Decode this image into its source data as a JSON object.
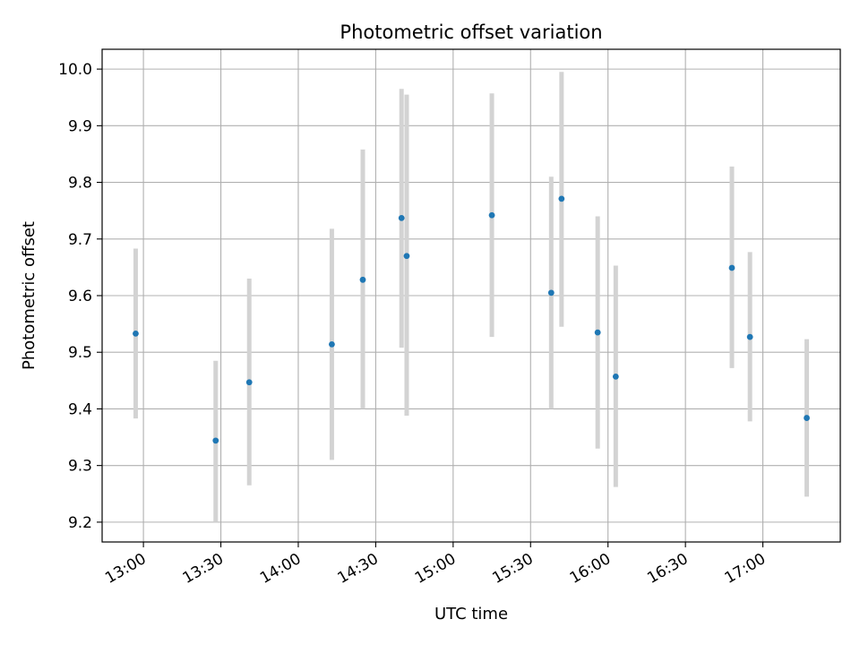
{
  "chart_data": {
    "type": "scatter",
    "title": "Photometric offset variation",
    "xlabel": "UTC time",
    "ylabel": "Photometric offset",
    "xlim": [
      "12:44",
      "17:30"
    ],
    "ylim": [
      9.165,
      10.035
    ],
    "x_ticks": [
      "13:00",
      "13:30",
      "14:00",
      "14:30",
      "15:00",
      "15:30",
      "16:00",
      "16:30",
      "17:00"
    ],
    "y_ticks": [
      "9.2",
      "9.3",
      "9.4",
      "9.5",
      "9.6",
      "9.7",
      "9.8",
      "9.9",
      "10.0"
    ],
    "grid": true,
    "legend": "none",
    "colors": {
      "point": "#1f77b4",
      "errorbar": "#d3d3d3",
      "grid": "#b0b0b0"
    },
    "series": [
      {
        "points": [
          {
            "x": "12:57",
            "y": 9.533,
            "ylow": 9.383,
            "yhigh": 9.683
          },
          {
            "x": "13:28",
            "y": 9.344,
            "ylow": 9.2,
            "yhigh": 9.485
          },
          {
            "x": "13:41",
            "y": 9.447,
            "ylow": 9.265,
            "yhigh": 9.63
          },
          {
            "x": "14:13",
            "y": 9.514,
            "ylow": 9.31,
            "yhigh": 9.718
          },
          {
            "x": "14:25",
            "y": 9.628,
            "ylow": 9.4,
            "yhigh": 9.858
          },
          {
            "x": "14:40",
            "y": 9.737,
            "ylow": 9.508,
            "yhigh": 9.965
          },
          {
            "x": "14:42",
            "y": 9.67,
            "ylow": 9.388,
            "yhigh": 9.955
          },
          {
            "x": "15:15",
            "y": 9.742,
            "ylow": 9.527,
            "yhigh": 9.957
          },
          {
            "x": "15:38",
            "y": 9.605,
            "ylow": 9.4,
            "yhigh": 9.81
          },
          {
            "x": "15:42",
            "y": 9.771,
            "ylow": 9.545,
            "yhigh": 9.995
          },
          {
            "x": "15:56",
            "y": 9.535,
            "ylow": 9.33,
            "yhigh": 9.74
          },
          {
            "x": "16:03",
            "y": 9.457,
            "ylow": 9.262,
            "yhigh": 9.653
          },
          {
            "x": "16:48",
            "y": 9.649,
            "ylow": 9.472,
            "yhigh": 9.828
          },
          {
            "x": "16:55",
            "y": 9.527,
            "ylow": 9.378,
            "yhigh": 9.677
          },
          {
            "x": "17:17",
            "y": 9.384,
            "ylow": 9.245,
            "yhigh": 9.523
          }
        ]
      }
    ]
  }
}
